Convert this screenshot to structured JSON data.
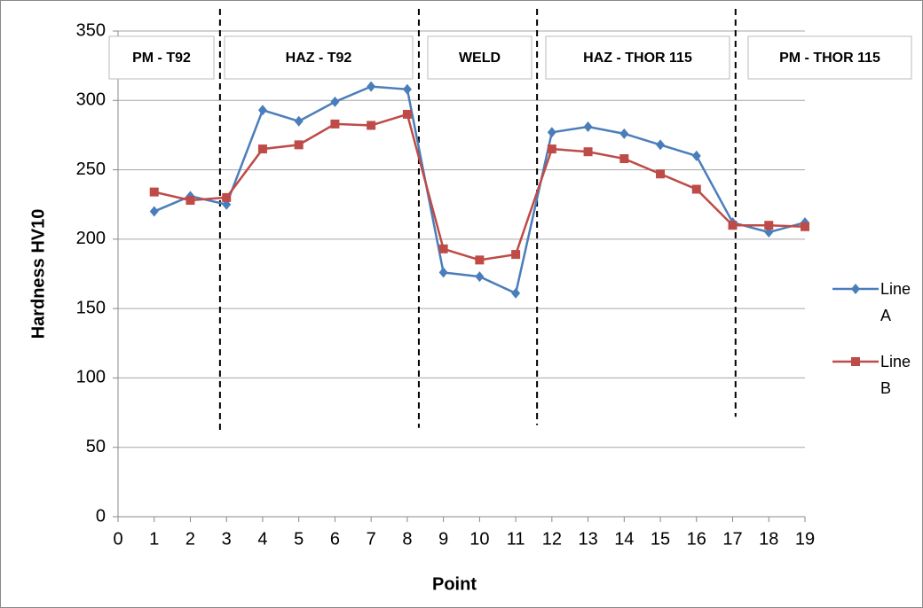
{
  "chart_data": {
    "type": "line",
    "x": [
      1,
      2,
      3,
      4,
      5,
      6,
      7,
      8,
      9,
      10,
      11,
      12,
      13,
      14,
      15,
      16,
      17,
      18,
      19
    ],
    "series": [
      {
        "name": "Line A",
        "color": "#4a7ebb",
        "marker": "diamond",
        "values": [
          220,
          231,
          225,
          293,
          285,
          299,
          310,
          308,
          176,
          173,
          161,
          277,
          281,
          276,
          268,
          260,
          212,
          205,
          212
        ]
      },
      {
        "name": "Line B",
        "color": "#be4b48",
        "marker": "square",
        "values": [
          234,
          228,
          230,
          265,
          268,
          283,
          282,
          290,
          193,
          185,
          189,
          265,
          263,
          258,
          247,
          236,
          210,
          210,
          209
        ]
      }
    ],
    "xlabel": "Point",
    "ylabel": "Hardness HV10",
    "xlim": [
      0,
      19
    ],
    "xticks": [
      0,
      1,
      2,
      3,
      4,
      5,
      6,
      7,
      8,
      9,
      10,
      11,
      12,
      13,
      14,
      15,
      16,
      17,
      18,
      19
    ],
    "ylim": [
      0,
      350
    ],
    "yticks": [
      0,
      50,
      100,
      150,
      200,
      250,
      300,
      350
    ],
    "grid": true,
    "regions": [
      "PM - T92",
      "HAZ - T92",
      "WELD",
      "HAZ - THOR 115",
      "PM - THOR 115"
    ],
    "dividers": [
      {
        "x": 2.82,
        "ymin": 60
      },
      {
        "x": 8.32,
        "ymin": 64
      },
      {
        "x": 11.59,
        "ymin": 66
      },
      {
        "x": 17.08,
        "ymin": 72
      }
    ],
    "legend": "right"
  }
}
